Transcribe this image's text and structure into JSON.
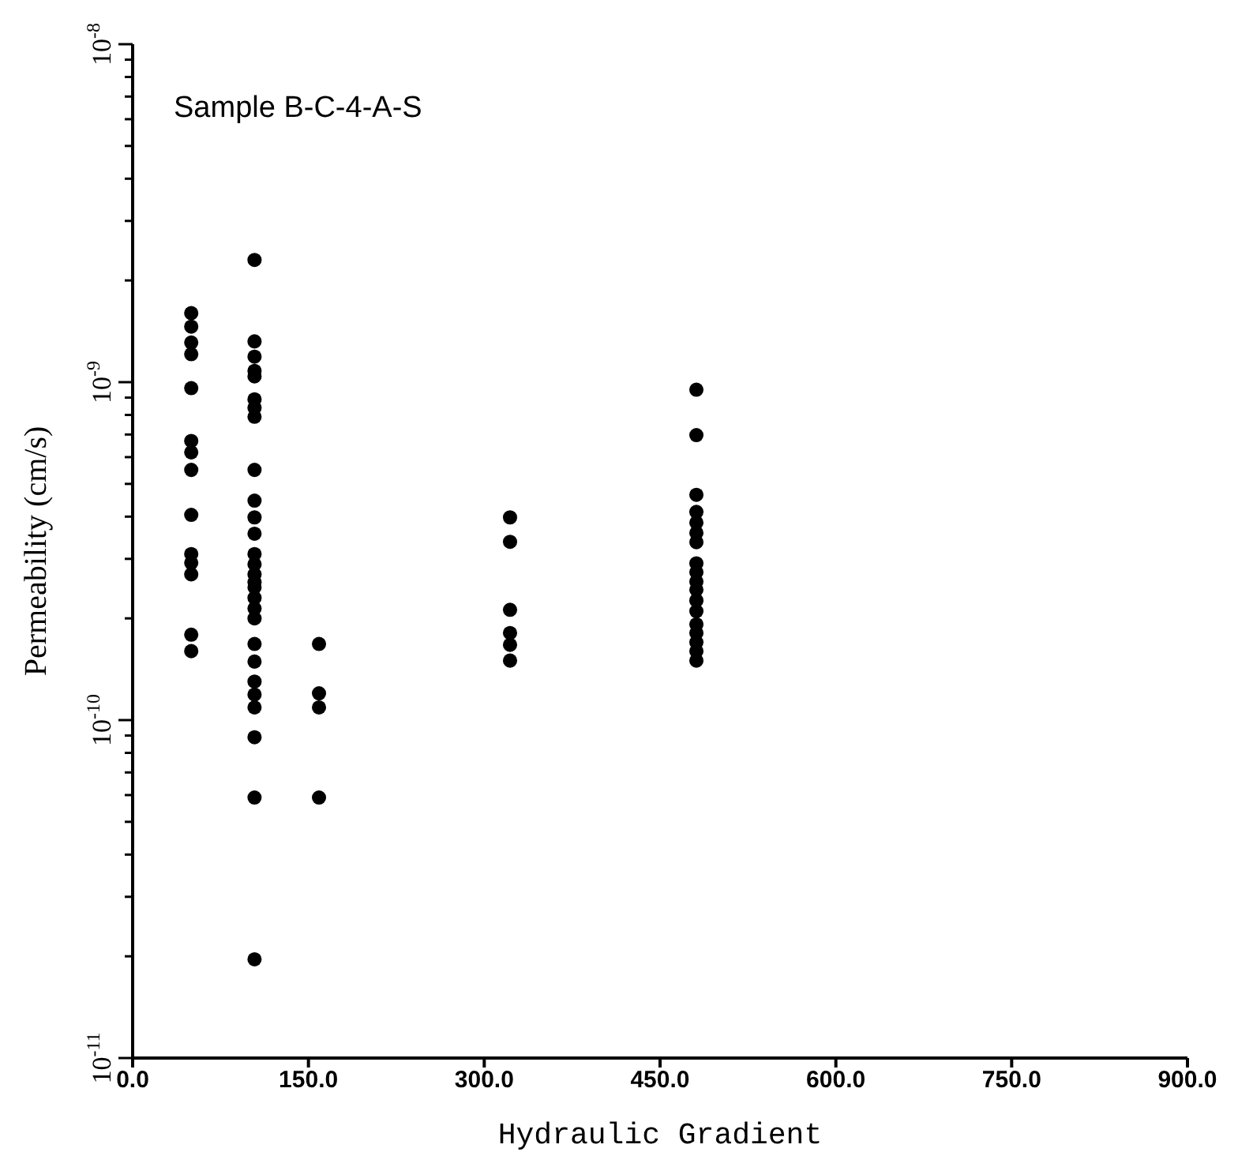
{
  "chart_data": {
    "type": "scatter",
    "xlabel": "Hydraulic Gradient",
    "ylabel": "Permeability  (cm/s)",
    "annotations": [
      "Sample B-C-4-A-S"
    ],
    "log": "y",
    "grid": false,
    "marker": "circle",
    "xlim": [
      0,
      900
    ],
    "xticks": [
      {
        "value": 0,
        "label": "0.0"
      },
      {
        "value": 150,
        "label": "150.0"
      },
      {
        "value": 300,
        "label": "300.0"
      },
      {
        "value": 450,
        "label": "450.0"
      },
      {
        "value": 600,
        "label": "600.0"
      },
      {
        "value": 750,
        "label": "750.0"
      },
      {
        "value": 900,
        "label": "900.0"
      }
    ],
    "ylim": [
      1e-11,
      1e-08
    ],
    "yticks": [
      {
        "value": 1e-11,
        "label": "10$^{-11}$"
      },
      {
        "value": 2e-11,
        "label": null
      },
      {
        "value": 3e-11,
        "label": null
      },
      {
        "value": 4e-11,
        "label": null
      },
      {
        "value": 5e-11,
        "label": null
      },
      {
        "value": 6e-11,
        "label": null
      },
      {
        "value": 7e-11,
        "label": null
      },
      {
        "value": 8e-11,
        "label": null
      },
      {
        "value": 9e-11,
        "label": null
      },
      {
        "value": 1e-10,
        "label": "10$^{-10}$"
      },
      {
        "value": 2e-10,
        "label": null
      },
      {
        "value": 3e-10,
        "label": null
      },
      {
        "value": 4e-10,
        "label": null
      },
      {
        "value": 5e-10,
        "label": null
      },
      {
        "value": 6e-10,
        "label": null
      },
      {
        "value": 7e-10,
        "label": null
      },
      {
        "value": 8e-10,
        "label": null
      },
      {
        "value": 9e-10,
        "label": null
      },
      {
        "value": 1e-09,
        "label": "10$^{-9}$"
      },
      {
        "value": 2e-09,
        "label": null
      },
      {
        "value": 3e-09,
        "label": null
      },
      {
        "value": 4e-09,
        "label": null
      },
      {
        "value": 5e-09,
        "label": null
      },
      {
        "value": 6e-09,
        "label": null
      },
      {
        "value": 7e-09,
        "label": null
      },
      {
        "value": 8e-09,
        "label": null
      },
      {
        "value": 9e-09,
        "label": null
      },
      {
        "value": 1e-08,
        "label": "10$^{-8}$"
      }
    ],
    "series": [
      {
        "color": "#000000",
        "x": [
          50,
          50,
          50,
          50,
          50,
          50,
          50,
          50,
          50,
          50,
          50,
          50,
          50,
          50,
          104,
          104,
          104,
          104,
          104,
          104,
          104,
          104,
          104,
          104,
          104,
          104,
          104,
          104,
          104,
          104,
          104,
          104,
          104,
          104,
          104,
          104,
          104,
          104,
          104,
          104,
          104,
          104,
          159,
          159,
          159,
          159,
          322,
          322,
          322,
          322,
          322,
          322,
          481,
          481,
          481,
          481,
          481,
          481,
          481,
          481,
          481,
          481,
          481,
          481,
          481,
          481,
          481,
          481,
          481,
          481
        ],
        "values": [
          1.6e-09,
          1.46e-09,
          1.31e-09,
          1.21e-09,
          9.6e-10,
          6.7e-10,
          6.2e-10,
          5.5e-10,
          4.05e-10,
          3.1e-10,
          2.92e-10,
          2.7e-10,
          1.79e-10,
          1.6e-10,
          2.3e-09,
          1.32e-09,
          1.19e-09,
          1.08e-09,
          1.04e-09,
          8.9e-10,
          8.4e-10,
          7.9e-10,
          5.5e-10,
          4.46e-10,
          3.98e-10,
          3.56e-10,
          3.1e-10,
          2.89e-10,
          2.7e-10,
          2.56e-10,
          2.47e-10,
          2.3e-10,
          2.14e-10,
          2e-10,
          1.68e-10,
          1.49e-10,
          1.3e-10,
          1.19e-10,
          1.09e-10,
          8.9e-11,
          5.9e-11,
          1.96e-11,
          1.68e-10,
          1.2e-10,
          1.09e-10,
          5.9e-11,
          3.98e-10,
          3.37e-10,
          2.12e-10,
          1.81e-10,
          1.67e-10,
          1.5e-10,
          9.5e-10,
          6.97e-10,
          4.64e-10,
          4.13e-10,
          3.84e-10,
          3.58e-10,
          3.36e-10,
          2.91e-10,
          2.74e-10,
          2.57e-10,
          2.43e-10,
          2.26e-10,
          2.1e-10,
          1.92e-10,
          1.81e-10,
          1.7e-10,
          1.6e-10,
          1.5e-10
        ]
      }
    ]
  }
}
